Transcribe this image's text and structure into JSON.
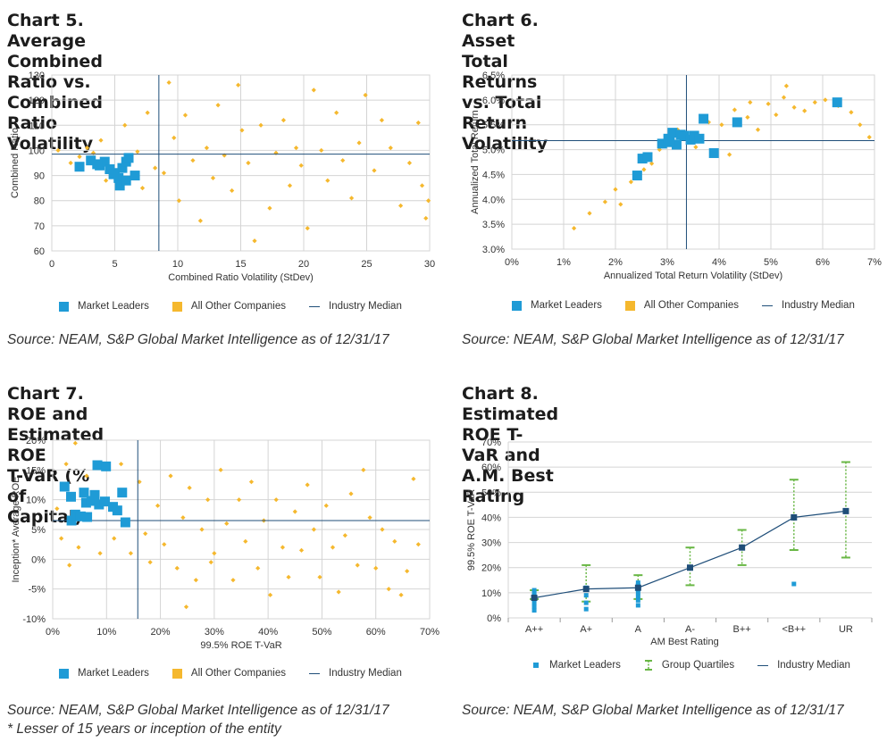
{
  "colors": {
    "leaders": "#1f9bd6",
    "others": "#f5b82e",
    "median": "#1f4e79",
    "grid": "#d4d4d4",
    "quartile": "#69b745",
    "ulBlue": "#1a5f8a"
  },
  "legend": {
    "leaders": "Market Leaders",
    "others": "All Other Companies",
    "median": "Industry Median",
    "quartiles": "Group Quartiles"
  },
  "source": "Source: NEAM, S&P Global Market Intelligence as of 12/31/17",
  "footnote": "* Lesser of 15 years or inception of the entity",
  "chart_data": [
    {
      "id": "c5",
      "type": "scatter",
      "title_line1": "Chart 5. Average Combined Ratio vs. Combined",
      "title_line2": "Ratio Volatility",
      "xlabel": "Combined Ratio Volatility (StDev)",
      "ylabel": "Combined Ratio",
      "xlim": [
        0,
        30
      ],
      "ylim": [
        60,
        130
      ],
      "xticks": [
        0,
        5,
        10,
        15,
        20,
        25,
        30
      ],
      "yticks": [
        60,
        70,
        80,
        90,
        100,
        110,
        120,
        130
      ],
      "xtick_labels": [
        "0",
        "5",
        "10",
        "15",
        "20",
        "25",
        "30"
      ],
      "ytick_labels": [
        "60",
        "70",
        "80",
        "90",
        "100",
        "110",
        "120",
        "130"
      ],
      "median": {
        "x": 8.5,
        "y": 98.5
      },
      "leaders": [
        [
          2.2,
          93.5
        ],
        [
          3.1,
          96
        ],
        [
          3.8,
          94
        ],
        [
          4.2,
          95.5
        ],
        [
          4.6,
          92.5
        ],
        [
          5.0,
          91
        ],
        [
          5.3,
          89
        ],
        [
          5.6,
          93
        ],
        [
          5.9,
          95.5
        ],
        [
          6.1,
          97
        ],
        [
          5.4,
          86
        ],
        [
          5.9,
          88
        ],
        [
          6.6,
          90
        ],
        [
          4.9,
          90.5
        ],
        [
          3.6,
          94.5
        ]
      ],
      "others": [
        [
          0.5,
          100
        ],
        [
          1.5,
          95
        ],
        [
          2.2,
          97.5
        ],
        [
          2.8,
          101
        ],
        [
          3.3,
          99
        ],
        [
          3.9,
          104
        ],
        [
          4.3,
          88
        ],
        [
          5.8,
          110
        ],
        [
          6.8,
          99.5
        ],
        [
          7.2,
          85
        ],
        [
          7.6,
          115
        ],
        [
          8.2,
          93
        ],
        [
          8.9,
          91
        ],
        [
          9.3,
          127
        ],
        [
          9.7,
          105
        ],
        [
          10.1,
          80
        ],
        [
          10.6,
          114
        ],
        [
          11.2,
          96
        ],
        [
          11.8,
          72
        ],
        [
          12.3,
          101
        ],
        [
          12.8,
          89
        ],
        [
          13.2,
          118
        ],
        [
          13.7,
          98
        ],
        [
          14.3,
          84
        ],
        [
          14.8,
          126
        ],
        [
          15.1,
          108
        ],
        [
          15.6,
          95
        ],
        [
          16.1,
          64
        ],
        [
          16.6,
          110
        ],
        [
          17.3,
          77
        ],
        [
          17.8,
          99
        ],
        [
          18.4,
          112
        ],
        [
          18.9,
          86
        ],
        [
          19.4,
          101
        ],
        [
          19.8,
          94
        ],
        [
          20.3,
          69
        ],
        [
          20.8,
          124
        ],
        [
          21.4,
          100
        ],
        [
          21.9,
          88
        ],
        [
          22.6,
          115
        ],
        [
          23.1,
          96
        ],
        [
          23.8,
          81
        ],
        [
          24.4,
          103
        ],
        [
          24.9,
          122
        ],
        [
          25.6,
          92
        ],
        [
          26.2,
          112
        ],
        [
          26.9,
          101
        ],
        [
          27.7,
          78
        ],
        [
          28.4,
          95
        ],
        [
          29.1,
          111
        ],
        [
          29.4,
          86
        ],
        [
          29.7,
          73
        ],
        [
          29.9,
          80
        ]
      ]
    },
    {
      "id": "c6",
      "type": "scatter",
      "title_line1": "Chart 6. Asset Total Returns vs. Total",
      "title_line2": "Return Volatility",
      "xlabel": "Annualized Total Return Volatility (StDev)",
      "ylabel": "Annualized Total Return",
      "xlim": [
        0,
        7
      ],
      "ylim": [
        3,
        6.5
      ],
      "xticks": [
        0,
        1,
        2,
        3,
        4,
        5,
        6,
        7
      ],
      "yticks": [
        3,
        3.5,
        4,
        4.5,
        5,
        5.5,
        6,
        6.5
      ],
      "xtick_labels": [
        "0%",
        "1%",
        "2%",
        "3%",
        "4%",
        "5%",
        "6%",
        "7%"
      ],
      "ytick_labels": [
        "3.0%",
        "3.5%",
        "4.0%",
        "4.5%",
        "5.0%",
        "5.5%",
        "6.0%",
        "6.5%"
      ],
      "median": {
        "x": 3.37,
        "y": 5.18
      },
      "leaders": [
        [
          2.42,
          4.48
        ],
        [
          2.52,
          4.82
        ],
        [
          2.62,
          4.85
        ],
        [
          2.9,
          5.12
        ],
        [
          3.02,
          5.22
        ],
        [
          3.1,
          5.34
        ],
        [
          3.18,
          5.1
        ],
        [
          3.33,
          5.28
        ],
        [
          3.45,
          5.2
        ],
        [
          3.52,
          5.28
        ],
        [
          3.62,
          5.22
        ],
        [
          3.7,
          5.62
        ],
        [
          3.9,
          4.93
        ],
        [
          4.35,
          5.55
        ],
        [
          6.28,
          5.95
        ],
        [
          3.26,
          5.3
        ],
        [
          3.05,
          5.15
        ]
      ],
      "others": [
        [
          1.2,
          3.42
        ],
        [
          1.5,
          3.72
        ],
        [
          1.8,
          3.95
        ],
        [
          2.0,
          4.2
        ],
        [
          2.1,
          3.9
        ],
        [
          2.3,
          4.35
        ],
        [
          2.55,
          4.6
        ],
        [
          2.7,
          4.72
        ],
        [
          2.85,
          5.0
        ],
        [
          3.2,
          5.4
        ],
        [
          3.55,
          5.05
        ],
        [
          3.8,
          5.55
        ],
        [
          4.05,
          5.5
        ],
        [
          4.3,
          5.8
        ],
        [
          4.55,
          5.65
        ],
        [
          4.75,
          5.4
        ],
        [
          4.95,
          5.92
        ],
        [
          5.1,
          5.7
        ],
        [
          5.25,
          6.05
        ],
        [
          5.45,
          5.85
        ],
        [
          5.65,
          5.78
        ],
        [
          5.85,
          5.95
        ],
        [
          6.05,
          6.0
        ],
        [
          6.3,
          5.88
        ],
        [
          6.55,
          5.75
        ],
        [
          6.72,
          5.5
        ],
        [
          6.9,
          5.25
        ],
        [
          4.2,
          4.9
        ],
        [
          5.3,
          6.28
        ],
        [
          4.6,
          5.95
        ]
      ]
    },
    {
      "id": "c7",
      "type": "scatter",
      "title_line1": "Chart 7.  ROE and Estimated ROE",
      "title_line2": "T-VaR (% of Capital)",
      "xlabel": "99.5% ROE T-VaR",
      "ylabel": "Inception* Average ROE",
      "xlim": [
        0,
        70
      ],
      "ylim": [
        -10,
        20
      ],
      "xticks": [
        0,
        10,
        20,
        30,
        40,
        50,
        60,
        70
      ],
      "yticks": [
        -10,
        -5,
        0,
        5,
        10,
        15,
        20
      ],
      "xtick_labels": [
        "0%",
        "10%",
        "20%",
        "30%",
        "40%",
        "50%",
        "60%",
        "70%"
      ],
      "ytick_labels": [
        "-10%",
        "-5%",
        "0%",
        "5%",
        "10%",
        "15%",
        "20%"
      ],
      "median": {
        "x": 15.8,
        "y": 6.5
      },
      "leaders": [
        [
          2.2,
          12.2
        ],
        [
          3.4,
          10.5
        ],
        [
          4.2,
          7.5
        ],
        [
          3.5,
          6.5
        ],
        [
          5.2,
          7.2
        ],
        [
          6.2,
          9.5
        ],
        [
          5.8,
          11.2
        ],
        [
          7.2,
          9.8
        ],
        [
          7.8,
          10.8
        ],
        [
          8.3,
          15.8
        ],
        [
          9.9,
          15.6
        ],
        [
          8.6,
          9.2
        ],
        [
          9.7,
          9.7
        ],
        [
          11.2,
          8.8
        ],
        [
          12.0,
          8.2
        ],
        [
          12.9,
          11.2
        ],
        [
          13.5,
          6.2
        ],
        [
          6.4,
          7.1
        ]
      ],
      "others": [
        [
          0.8,
          8.5
        ],
        [
          1.6,
          3.5
        ],
        [
          2.5,
          16
        ],
        [
          3.1,
          -1
        ],
        [
          4.2,
          19.5
        ],
        [
          4.8,
          2
        ],
        [
          6.3,
          14
        ],
        [
          8.8,
          1
        ],
        [
          11.4,
          3.5
        ],
        [
          12.7,
          16
        ],
        [
          14.5,
          1
        ],
        [
          16.1,
          13
        ],
        [
          17.2,
          4.3
        ],
        [
          18.1,
          -0.5
        ],
        [
          19.5,
          9
        ],
        [
          20.7,
          2.5
        ],
        [
          21.9,
          14
        ],
        [
          23.1,
          -1.5
        ],
        [
          24.2,
          7
        ],
        [
          25.4,
          12
        ],
        [
          26.6,
          -3.5
        ],
        [
          27.7,
          5
        ],
        [
          28.8,
          10
        ],
        [
          30,
          1
        ],
        [
          31.2,
          15
        ],
        [
          32.3,
          6
        ],
        [
          33.5,
          -3.5
        ],
        [
          34.6,
          10
        ],
        [
          35.8,
          3
        ],
        [
          36.9,
          13
        ],
        [
          38.1,
          -1.5
        ],
        [
          39.2,
          6.5
        ],
        [
          40.4,
          -6
        ],
        [
          41.5,
          10
        ],
        [
          42.7,
          2
        ],
        [
          43.8,
          -3
        ],
        [
          45,
          8
        ],
        [
          46.2,
          1.5
        ],
        [
          47.3,
          12.5
        ],
        [
          48.5,
          5
        ],
        [
          49.6,
          -3
        ],
        [
          50.8,
          9
        ],
        [
          52,
          2
        ],
        [
          53.1,
          -5.5
        ],
        [
          54.3,
          4
        ],
        [
          55.4,
          11
        ],
        [
          56.6,
          -1
        ],
        [
          57.7,
          15
        ],
        [
          58.9,
          7
        ],
        [
          60,
          -1.5
        ],
        [
          61.2,
          5
        ],
        [
          62.4,
          -5
        ],
        [
          63.5,
          3
        ],
        [
          64.7,
          -6
        ],
        [
          65.8,
          -2
        ],
        [
          67,
          13.5
        ],
        [
          67.9,
          2.5
        ],
        [
          24.8,
          -8
        ],
        [
          29.4,
          -0.5
        ]
      ]
    },
    {
      "id": "c8",
      "type": "line",
      "title_line1": "Chart 8. Estimated ROE T-VaR and",
      "title_line2": "A.M. Best Rating",
      "xlabel": "AM Best Rating",
      "ylabel": "99.5% ROE T-VaR",
      "categories": [
        "A++",
        "A+",
        "A",
        "A-",
        "B++",
        "<B++",
        "UR"
      ],
      "ylim": [
        0,
        70
      ],
      "yticks": [
        0,
        10,
        20,
        30,
        40,
        50,
        60,
        70
      ],
      "ytick_labels": [
        "0%",
        "10%",
        "20%",
        "30%",
        "40%",
        "50%",
        "60%",
        "70%"
      ],
      "median": [
        8,
        11.5,
        12,
        20,
        28,
        40,
        42.5
      ],
      "quartile_low": [
        7.5,
        6.5,
        7.5,
        13,
        21,
        27,
        24
      ],
      "quartile_high": [
        11,
        21,
        17,
        28,
        35,
        55,
        62
      ],
      "leaders": [
        [
          0,
          3
        ],
        [
          0,
          4.5
        ],
        [
          0,
          6
        ],
        [
          0,
          7.5
        ],
        [
          0,
          9
        ],
        [
          0,
          10
        ],
        [
          0,
          11
        ],
        [
          1,
          3.5
        ],
        [
          1,
          6
        ],
        [
          1,
          9
        ],
        [
          1,
          11.5
        ],
        [
          1,
          12
        ],
        [
          2,
          5
        ],
        [
          2,
          7
        ],
        [
          2,
          8.5
        ],
        [
          2,
          10
        ],
        [
          2,
          11.5
        ],
        [
          2,
          13
        ],
        [
          2,
          14
        ],
        [
          5,
          13.5
        ]
      ]
    }
  ]
}
